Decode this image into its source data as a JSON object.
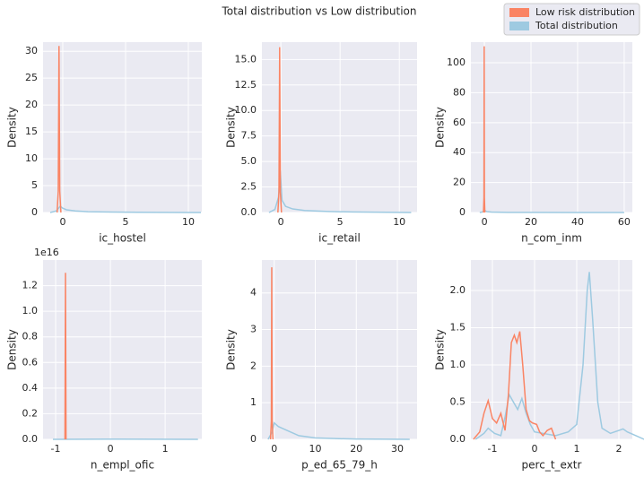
{
  "title": "Total distribution vs Low distribution",
  "legend_position": "upper right",
  "chart_data": [
    {
      "type": "line",
      "x_label": "ic_hostel",
      "y_label": "Density",
      "grid": true,
      "xlim": [
        -1.57,
        11.07
      ],
      "ylim": [
        0,
        31.7
      ],
      "xticks": [
        0,
        5,
        10
      ],
      "yticks": [
        0,
        5,
        10,
        15,
        20,
        25,
        30
      ],
      "series": [
        {
          "name": "Total distribution",
          "color": "#9ecae1",
          "x": [
            -1,
            -0.5,
            -0.2,
            0,
            0.3,
            1,
            2,
            4,
            6,
            8,
            10,
            11
          ],
          "values": [
            0,
            0.3,
            1.2,
            0.8,
            0.5,
            0.3,
            0.15,
            0.08,
            0.04,
            0.02,
            0.01,
            0
          ]
        },
        {
          "name": "Low risk distribution",
          "color": "#fa8464",
          "x": [
            -0.45,
            -0.36,
            -0.3,
            -0.24,
            -0.15
          ],
          "values": [
            0,
            4,
            31,
            4,
            0
          ]
        }
      ]
    },
    {
      "type": "line",
      "x_label": "ic_retail",
      "y_label": "Density",
      "grid": true,
      "xlim": [
        -1.6,
        11.5
      ],
      "ylim": [
        0,
        16.7
      ],
      "xticks": [
        0,
        5,
        10
      ],
      "yticks": [
        {
          "value": 0,
          "label": "0.0"
        },
        {
          "value": 2.5,
          "label": "2.5"
        },
        {
          "value": 5,
          "label": "5.0"
        },
        {
          "value": 7.5,
          "label": "7.5"
        },
        {
          "value": 10,
          "label": "10.0"
        },
        {
          "value": 12.5,
          "label": "12.5"
        },
        {
          "value": 15,
          "label": "15.0"
        }
      ],
      "series": [
        {
          "name": "Total distribution",
          "color": "#9ecae1",
          "x": [
            -1,
            -0.5,
            -0.2,
            -0.05,
            0.1,
            0.4,
            1,
            2,
            4,
            6,
            8,
            10,
            11
          ],
          "values": [
            0,
            0.3,
            1.5,
            4.1,
            1.2,
            0.6,
            0.35,
            0.2,
            0.1,
            0.05,
            0.03,
            0.01,
            0
          ]
        },
        {
          "name": "Low risk distribution",
          "color": "#fa8464",
          "x": [
            -0.25,
            -0.16,
            -0.1,
            -0.04,
            0.05
          ],
          "values": [
            0,
            2,
            16.2,
            2,
            0
          ]
        }
      ]
    },
    {
      "type": "line",
      "x_label": "n_com_inm",
      "y_label": "Density",
      "grid": true,
      "xlim": [
        -5.8,
        63.5
      ],
      "ylim": [
        0,
        113.8
      ],
      "xticks": [
        0,
        20,
        40,
        60
      ],
      "yticks": [
        0,
        20,
        40,
        60,
        80,
        100
      ],
      "series": [
        {
          "name": "Total distribution",
          "color": "#9ecae1",
          "x": [
            -2,
            -0.5,
            0,
            1,
            3,
            10,
            20,
            40,
            60
          ],
          "values": [
            0,
            0.5,
            1.5,
            0.6,
            0.3,
            0.1,
            0.05,
            0.02,
            0
          ]
        },
        {
          "name": "Low risk distribution",
          "color": "#fa8464",
          "x": [
            -0.4,
            -0.2,
            -0.1,
            0,
            0.2
          ],
          "values": [
            0,
            10,
            111,
            10,
            0
          ]
        }
      ]
    },
    {
      "type": "line",
      "x_label": "n_empl_ofic",
      "y_label": "Density",
      "y_offset_label": "1e16",
      "grid": true,
      "xlim": [
        -1.23,
        1.67
      ],
      "ylim": [
        0,
        1.4
      ],
      "xticks": [
        -1,
        0,
        1
      ],
      "yticks": [
        {
          "value": 0,
          "label": "0.0"
        },
        {
          "value": 0.2,
          "label": "0.2"
        },
        {
          "value": 0.4,
          "label": "0.4"
        },
        {
          "value": 0.6,
          "label": "0.6"
        },
        {
          "value": 0.8,
          "label": "0.8"
        },
        {
          "value": 1.0,
          "label": "1.0"
        },
        {
          "value": 1.2,
          "label": "1.2"
        }
      ],
      "series": [
        {
          "name": "Total distribution",
          "color": "#9ecae1",
          "x": [
            -1.05,
            0,
            1.6
          ],
          "values": [
            0,
            0.002,
            0
          ]
        },
        {
          "name": "Low risk distribution",
          "color": "#fa8464",
          "x": [
            -0.83,
            -0.82,
            -0.81
          ],
          "values": [
            0,
            1.3,
            0
          ]
        }
      ]
    },
    {
      "type": "line",
      "x_label": "p_ed_65_79_h",
      "y_label": "Density",
      "grid": true,
      "xlim": [
        -3.0,
        34.8
      ],
      "ylim": [
        0,
        4.9
      ],
      "xticks": [
        0,
        10,
        20,
        30
      ],
      "yticks": [
        0,
        1,
        2,
        3,
        4
      ],
      "series": [
        {
          "name": "Total distribution",
          "color": "#9ecae1",
          "x": [
            -1.5,
            -0.5,
            0,
            0.5,
            1,
            3,
            6,
            10,
            15,
            20,
            25,
            33
          ],
          "values": [
            0,
            0.2,
            0.45,
            0.4,
            0.35,
            0.25,
            0.1,
            0.04,
            0.02,
            0.01,
            0.005,
            0
          ]
        },
        {
          "name": "Low risk distribution",
          "color": "#fa8464",
          "x": [
            -0.9,
            -0.7,
            -0.6,
            -0.5,
            -0.3
          ],
          "values": [
            0,
            0.5,
            4.7,
            0.5,
            0
          ]
        }
      ]
    },
    {
      "type": "line",
      "x_label": "perc_t_extr",
      "y_label": "Density",
      "grid": true,
      "xlim": [
        -1.51,
        2.32
      ],
      "ylim": [
        0,
        2.41
      ],
      "xticks": [
        -1,
        0,
        1,
        2
      ],
      "yticks": [
        {
          "value": 0,
          "label": "0.0"
        },
        {
          "value": 0.5,
          "label": "0.5"
        },
        {
          "value": 1.0,
          "label": "1.0"
        },
        {
          "value": 1.5,
          "label": "1.5"
        },
        {
          "value": 2.0,
          "label": "2.0"
        }
      ],
      "series": [
        {
          "name": "Total distribution",
          "color": "#9ecae1",
          "x": [
            -1.4,
            -1.2,
            -1.1,
            -0.95,
            -0.8,
            -0.7,
            -0.6,
            -0.5,
            -0.4,
            -0.3,
            -0.2,
            -0.1,
            0,
            0.2,
            0.5,
            0.8,
            1.0,
            1.15,
            1.25,
            1.3,
            1.38,
            1.5,
            1.6,
            1.8,
            2.0,
            2.1,
            2.2,
            2.4,
            2.6
          ],
          "values": [
            0,
            0.08,
            0.15,
            0.08,
            0.05,
            0.3,
            0.6,
            0.5,
            0.4,
            0.55,
            0.35,
            0.2,
            0.1,
            0.08,
            0.05,
            0.1,
            0.2,
            1.0,
            2.0,
            2.25,
            1.6,
            0.5,
            0.15,
            0.08,
            0.12,
            0.14,
            0.1,
            0.05,
            0
          ]
        },
        {
          "name": "Low risk distribution",
          "color": "#fa8464",
          "x": [
            -1.45,
            -1.3,
            -1.2,
            -1.1,
            -1.0,
            -0.9,
            -0.8,
            -0.7,
            -0.62,
            -0.55,
            -0.48,
            -0.42,
            -0.35,
            -0.28,
            -0.2,
            -0.12,
            -0.05,
            0.05,
            0.12,
            0.2,
            0.3,
            0.4,
            0.5
          ],
          "values": [
            0,
            0.1,
            0.35,
            0.52,
            0.28,
            0.22,
            0.35,
            0.12,
            0.6,
            1.3,
            1.4,
            1.3,
            1.45,
            1.0,
            0.4,
            0.25,
            0.22,
            0.2,
            0.1,
            0.05,
            0.12,
            0.15,
            0
          ]
        }
      ]
    }
  ]
}
